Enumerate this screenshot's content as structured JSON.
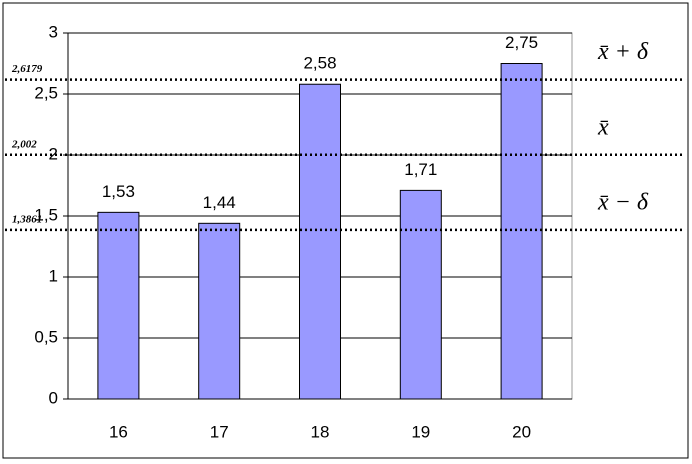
{
  "chart_data": {
    "type": "bar",
    "categories": [
      "16",
      "17",
      "18",
      "19",
      "20"
    ],
    "values": [
      1.53,
      1.44,
      2.58,
      1.71,
      2.75
    ],
    "value_labels": [
      "1,53",
      "1,44",
      "2,58",
      "1,71",
      "2,75"
    ],
    "color": "#9999ff",
    "ylim": [
      0,
      3
    ],
    "yticks": [
      0,
      {
        "value": 0.5,
        "label": "0,5"
      },
      1,
      {
        "value": 1.5,
        "label": "1,5"
      },
      2,
      {
        "value": 2.5,
        "label": "2,5"
      },
      3
    ],
    "grid": true,
    "reference_lines": [
      {
        "value": 2.6179,
        "label": "2,6179",
        "name": "x̄ + δ"
      },
      {
        "value": 2.002,
        "label": "2,002",
        "name": "x̄"
      },
      {
        "value": 1.3861,
        "label": "1,3861",
        "name": "x̄ − δ"
      }
    ]
  }
}
